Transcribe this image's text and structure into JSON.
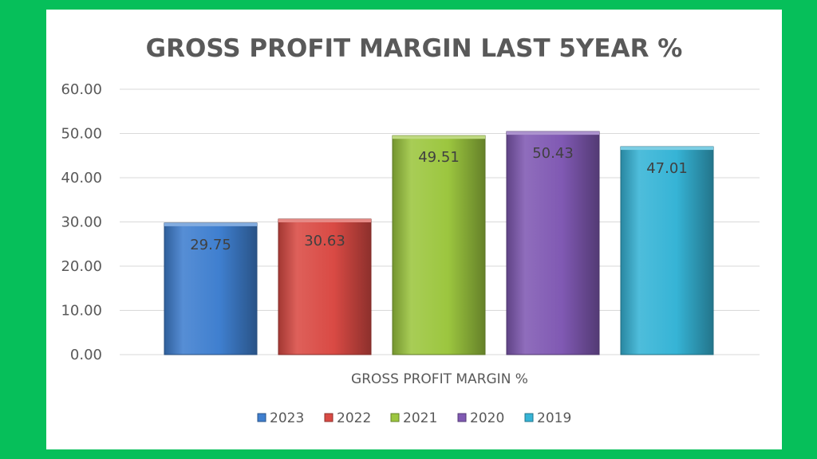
{
  "chart_data": {
    "type": "bar",
    "title": "GROSS PROFIT MARGIN LAST 5YEAR  %",
    "categories": [
      "GROSS PROFIT MARGIN %"
    ],
    "series": [
      {
        "name": "2023",
        "values": [
          29.75
        ],
        "label": "29.75",
        "color": "#3f7fcf"
      },
      {
        "name": "2022",
        "values": [
          30.63
        ],
        "label": "30.63",
        "color": "#d94a44"
      },
      {
        "name": "2021",
        "values": [
          49.51
        ],
        "label": "49.51",
        "color": "#9cc63f"
      },
      {
        "name": "2020",
        "values": [
          50.43
        ],
        "label": "50.43",
        "color": "#8059b3"
      },
      {
        "name": "2019",
        "values": [
          47.01
        ],
        "label": "47.01",
        "color": "#36b4d6"
      }
    ],
    "ylim": [
      0,
      60
    ],
    "yticks": [
      "0.00",
      "10.00",
      "20.00",
      "30.00",
      "40.00",
      "50.00",
      "60.00"
    ],
    "grid": true,
    "legend": "bottom"
  }
}
